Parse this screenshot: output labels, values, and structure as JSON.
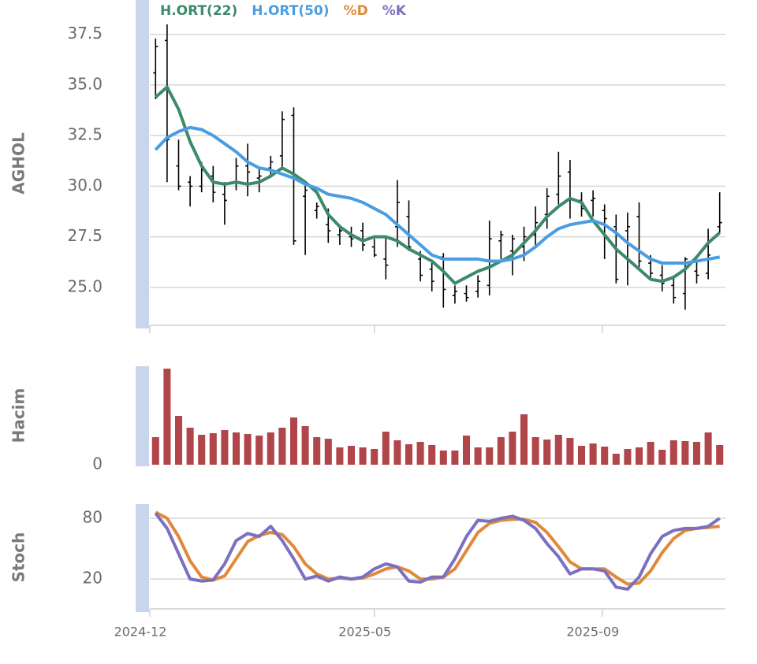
{
  "chart_data": [
    {
      "type": "ohlc",
      "ylabel": "AGHOL",
      "ylim": [
        23.05,
        39.2
      ],
      "yticks": [
        {
          "value": 25,
          "label": "25.0"
        },
        27.5,
        {
          "value": 30,
          "label": "30.0"
        },
        32.5,
        {
          "value": 35,
          "label": "35.0"
        },
        37.5
      ],
      "grid": true,
      "color": "#000000",
      "open": [
        35.6,
        37.2,
        31.0,
        30.2,
        30.0,
        30.5,
        29.6,
        30.2,
        31.0,
        30.4,
        30.9,
        31.5,
        33.5,
        29.5,
        28.8,
        28.1,
        27.6,
        27.5,
        27.8,
        27.0,
        26.4,
        28.0,
        28.5,
        26.4,
        25.9,
        26.5,
        24.6,
        24.7,
        24.8,
        25.1,
        27.3,
        26.8,
        27.0,
        27.6,
        28.6,
        29.6,
        30.7,
        29.3,
        29.3,
        28.8,
        28.0,
        27.8,
        28.5,
        26.2,
        25.6,
        25.1,
        24.7,
        25.8,
        25.7,
        28.0
      ],
      "high": [
        37.3,
        38.0,
        32.3,
        30.5,
        31.2,
        31.0,
        30.2,
        31.4,
        32.1,
        30.9,
        31.5,
        33.7,
        33.9,
        30.2,
        29.2,
        28.9,
        28.1,
        28.0,
        28.2,
        27.4,
        27.5,
        30.3,
        29.3,
        26.8,
        26.2,
        26.7,
        25.1,
        25.1,
        25.6,
        28.3,
        27.8,
        27.6,
        28.0,
        29.0,
        29.9,
        31.7,
        31.3,
        29.7,
        29.8,
        29.1,
        28.6,
        28.7,
        29.2,
        26.6,
        26.1,
        25.6,
        26.5,
        26.3,
        27.9,
        29.7
      ],
      "low": [
        34.3,
        30.2,
        29.8,
        29.0,
        29.7,
        29.2,
        28.1,
        29.8,
        29.5,
        29.7,
        30.5,
        30.8,
        27.1,
        26.6,
        28.4,
        27.2,
        27.1,
        27.0,
        26.8,
        26.5,
        25.4,
        27.0,
        26.8,
        25.3,
        24.8,
        24.0,
        24.2,
        24.3,
        24.5,
        24.6,
        26.4,
        25.6,
        26.3,
        27.0,
        27.9,
        29.1,
        28.4,
        28.5,
        28.5,
        26.4,
        25.2,
        25.1,
        26.0,
        25.4,
        24.8,
        24.2,
        23.9,
        25.2,
        25.4,
        27.7
      ],
      "close": [
        36.9,
        32.3,
        30.0,
        30.0,
        30.8,
        29.7,
        29.3,
        31.0,
        30.7,
        30.5,
        31.2,
        33.3,
        27.3,
        29.8,
        29.0,
        27.8,
        27.8,
        27.4,
        27.1,
        26.6,
        26.1,
        29.2,
        27.0,
        25.6,
        25.3,
        24.9,
        24.8,
        24.5,
        25.3,
        27.4,
        27.6,
        27.4,
        27.5,
        28.2,
        29.5,
        30.5,
        29.4,
        28.9,
        29.4,
        28.4,
        25.4,
        28.0,
        26.3,
        25.7,
        25.2,
        24.5,
        26.4,
        25.6,
        26.6,
        28.2
      ],
      "series": [
        {
          "name": "H.ORT(22)",
          "color": "#3d8a6a",
          "values": [
            34.4,
            34.9,
            33.8,
            32.2,
            31.0,
            30.2,
            30.1,
            30.2,
            30.1,
            30.2,
            30.5,
            30.9,
            30.6,
            30.2,
            29.7,
            28.6,
            28.0,
            27.6,
            27.3,
            27.5,
            27.5,
            27.3,
            26.9,
            26.6,
            26.3,
            25.8,
            25.2,
            25.5,
            25.8,
            26.0,
            26.3,
            26.6,
            27.2,
            27.8,
            28.5,
            29.0,
            29.4,
            29.2,
            28.3,
            27.6,
            26.9,
            26.4,
            25.9,
            25.4,
            25.3,
            25.5,
            25.9,
            26.5,
            27.2,
            27.7
          ]
        },
        {
          "name": "H.ORT(50)",
          "color": "#4a9de0",
          "values": [
            31.8,
            32.4,
            32.7,
            32.9,
            32.8,
            32.5,
            32.1,
            31.7,
            31.2,
            30.9,
            30.8,
            30.6,
            30.4,
            30.1,
            29.9,
            29.6,
            29.5,
            29.4,
            29.2,
            28.9,
            28.6,
            28.1,
            27.6,
            27.1,
            26.6,
            26.4,
            26.4,
            26.4,
            26.4,
            26.3,
            26.3,
            26.4,
            26.6,
            27.0,
            27.5,
            27.9,
            28.1,
            28.2,
            28.3,
            28.1,
            27.7,
            27.2,
            26.8,
            26.4,
            26.2,
            26.2,
            26.2,
            26.3,
            26.4,
            26.5
          ]
        }
      ]
    },
    {
      "type": "bar",
      "ylabel": "Hacim",
      "color": "#b0454a",
      "ylim": [
        0,
        125
      ],
      "yticks": [
        0
      ],
      "values": [
        35,
        122,
        62,
        47,
        38,
        40,
        44,
        41,
        39,
        37,
        41,
        47,
        60,
        49,
        35,
        33,
        22,
        24,
        22,
        20,
        42,
        31,
        26,
        29,
        25,
        18,
        18,
        37,
        22,
        22,
        35,
        42,
        64,
        35,
        32,
        38,
        34,
        24,
        27,
        23,
        14,
        20,
        22,
        29,
        19,
        31,
        30,
        29,
        41,
        25
      ]
    },
    {
      "type": "line",
      "ylabel": "Stoch",
      "ylim": [
        -11,
        94
      ],
      "yticks": [
        20,
        80
      ],
      "grid": true,
      "xlim": [
        -0.5,
        49.5
      ],
      "xticks": [
        {
          "value": -0.5,
          "label": "2024-12"
        },
        {
          "value": 19,
          "label": "2025-05"
        },
        {
          "value": 38.8,
          "label": "2025-09"
        }
      ],
      "series": [
        {
          "name": "%D",
          "color": "#e0893a",
          "values": [
            86,
            80,
            62,
            38,
            22,
            19,
            23,
            40,
            57,
            63,
            66,
            64,
            52,
            35,
            25,
            20,
            21,
            20,
            21,
            25,
            30,
            32,
            28,
            20,
            20,
            22,
            30,
            48,
            66,
            75,
            78,
            79,
            79,
            76,
            66,
            52,
            37,
            30,
            30,
            30,
            22,
            15,
            16,
            28,
            46,
            60,
            68,
            70,
            71,
            72
          ]
        },
        {
          "name": "%K",
          "color": "#7b70c0",
          "values": [
            85,
            70,
            45,
            20,
            18,
            19,
            35,
            58,
            65,
            62,
            72,
            58,
            40,
            20,
            23,
            18,
            22,
            20,
            22,
            30,
            35,
            32,
            18,
            17,
            22,
            22,
            40,
            62,
            78,
            77,
            80,
            82,
            78,
            70,
            55,
            42,
            25,
            30,
            30,
            28,
            12,
            10,
            22,
            45,
            62,
            68,
            70,
            70,
            72,
            80
          ]
        }
      ]
    }
  ]
}
